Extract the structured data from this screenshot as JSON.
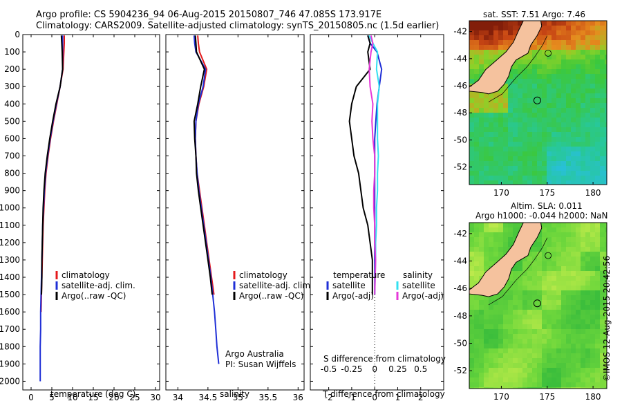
{
  "header": {
    "title1": "Argo profile: CS 5904236_94 06-Aug-2015 20150807_746 47.085S 173.917E",
    "title2": "Climatology: CARS2009. Satellite-adjusted climatology: synTS_20150805.nc (1.5d earlier)"
  },
  "colors": {
    "climatology": "#e41a1c",
    "satellite": "#1f2fd6",
    "argo": "#000000",
    "salinity_satellite": "#33e0f0",
    "salinity_argo": "#e639d8"
  },
  "chart_data": [
    {
      "type": "line",
      "xlabel": "temperature (deg C)",
      "ylabel": "",
      "xlim": [
        -2,
        31
      ],
      "ylim": [
        0,
        2050
      ],
      "y_reversed": true,
      "xticks": [
        0,
        5,
        10,
        15,
        20,
        25,
        30
      ],
      "yticks": [
        0,
        100,
        200,
        300,
        400,
        500,
        600,
        700,
        800,
        900,
        1000,
        1100,
        1200,
        1300,
        1400,
        1500,
        1600,
        1700,
        1800,
        1900,
        2000
      ],
      "legend": [
        "climatology",
        "satellite-adj. clim.",
        "Argo(..raw -QC)"
      ],
      "series": [
        {
          "name": "climatology",
          "x": [
            8.0,
            8.0,
            7.9,
            7.7,
            7.0,
            6.2,
            5.4,
            4.7,
            4.1,
            3.6,
            3.3,
            3.1,
            2.9,
            2.8,
            2.7,
            2.6,
            2.5,
            2.4
          ],
          "y": [
            5,
            50,
            100,
            200,
            300,
            400,
            500,
            600,
            700,
            800,
            900,
            1000,
            1100,
            1200,
            1300,
            1400,
            1500,
            1600
          ]
        },
        {
          "name": "satellite-adj. clim.",
          "x": [
            7.6,
            7.6,
            7.6,
            7.6,
            7.0,
            6.1,
            5.3,
            4.6,
            4.0,
            3.5,
            3.2,
            3.0,
            2.8,
            2.7,
            2.6,
            2.5,
            2.4,
            2.3,
            2.3,
            2.2,
            2.2,
            2.2
          ],
          "y": [
            5,
            50,
            100,
            200,
            300,
            400,
            500,
            600,
            700,
            800,
            900,
            1000,
            1100,
            1200,
            1300,
            1400,
            1500,
            1600,
            1700,
            1800,
            1900,
            2000
          ]
        },
        {
          "name": "Argo(..raw -QC)",
          "x": [
            7.3,
            7.4,
            7.5,
            7.6,
            7.0,
            6.0,
            5.2,
            4.5,
            3.9,
            3.4,
            3.1,
            2.9,
            2.8,
            2.7,
            2.6,
            2.6,
            2.5
          ],
          "y": [
            5,
            50,
            100,
            200,
            300,
            400,
            500,
            600,
            700,
            800,
            900,
            1000,
            1100,
            1200,
            1300,
            1400,
            1500
          ]
        }
      ]
    },
    {
      "type": "line",
      "xlabel": "salinity",
      "ylabel": "",
      "xlim": [
        33.8,
        36.1
      ],
      "ylim": [
        0,
        2050
      ],
      "y_reversed": true,
      "xticks": [
        34,
        34.5,
        35,
        35.5,
        36
      ],
      "legend": [
        "climatology",
        "satellite-adj. clim.",
        "Argo(..raw -QC)"
      ],
      "annotation1": "Argo Australia",
      "annotation2": "PI: Susan Wijffels",
      "series": [
        {
          "name": "climatology",
          "x": [
            34.33,
            34.34,
            34.36,
            34.48,
            34.43,
            34.35,
            34.3,
            34.29,
            34.3,
            34.32,
            34.36,
            34.4,
            34.44,
            34.48,
            34.52,
            34.56,
            34.6
          ],
          "y": [
            5,
            50,
            100,
            200,
            300,
            400,
            500,
            600,
            700,
            800,
            900,
            1000,
            1100,
            1200,
            1300,
            1400,
            1500
          ]
        },
        {
          "name": "satellite-adj. clim.",
          "x": [
            34.27,
            34.28,
            34.3,
            34.46,
            34.42,
            34.34,
            34.3,
            34.29,
            34.3,
            34.32,
            34.35,
            34.39,
            34.43,
            34.47,
            34.51,
            34.55,
            34.58,
            34.61,
            34.63,
            34.65,
            34.68
          ],
          "y": [
            5,
            50,
            100,
            200,
            300,
            400,
            500,
            600,
            700,
            800,
            900,
            1000,
            1100,
            1200,
            1300,
            1400,
            1500,
            1600,
            1700,
            1800,
            1900
          ]
        },
        {
          "name": "Argo(..raw -QC)",
          "x": [
            34.29,
            34.3,
            34.31,
            34.44,
            34.38,
            34.33,
            34.27,
            34.28,
            34.3,
            34.31,
            34.34,
            34.38,
            34.42,
            34.46,
            34.5,
            34.54,
            34.57
          ],
          "y": [
            5,
            50,
            100,
            200,
            300,
            400,
            500,
            600,
            700,
            800,
            900,
            1000,
            1100,
            1200,
            1300,
            1400,
            1500
          ]
        }
      ]
    },
    {
      "type": "line",
      "xlabel": "T difference from climatology",
      "xlabel_top": "S difference from climatology",
      "ylabel": "",
      "xlim": [
        -2.8,
        3.0
      ],
      "ylim": [
        0,
        2050
      ],
      "y_reversed": true,
      "xticks": [
        -2,
        -1,
        0,
        1,
        2
      ],
      "xticks_top": [
        "-0.5",
        "-0.25",
        "0",
        "0.25",
        "0.5"
      ],
      "legend_title_t": "temperature",
      "legend_title_s": "salinity",
      "legend_t": [
        "satellite",
        "Argo(-adj)"
      ],
      "legend_s": [
        "satellite",
        "Argo(-adj)"
      ],
      "series": [
        {
          "name": "temperature satellite",
          "x": [
            -0.3,
            -0.2,
            0.1,
            0.3,
            0.2,
            0.1,
            0.05,
            0.0,
            0.0,
            0.0,
            0.0,
            0.0,
            0.0,
            0.0,
            0.0,
            0.0
          ],
          "y": [
            5,
            50,
            100,
            200,
            300,
            400,
            500,
            600,
            700,
            800,
            900,
            1000,
            1100,
            1200,
            1300,
            1500
          ]
        },
        {
          "name": "temperature Argo(-adj)",
          "x": [
            -0.3,
            -0.2,
            -0.3,
            -0.2,
            -0.8,
            -1.0,
            -1.1,
            -1.0,
            -0.9,
            -0.7,
            -0.6,
            -0.5,
            -0.3,
            -0.2,
            -0.1,
            -0.1
          ],
          "y": [
            5,
            50,
            100,
            200,
            300,
            400,
            500,
            600,
            700,
            800,
            900,
            1000,
            1100,
            1200,
            1300,
            1500
          ]
        },
        {
          "name": "salinity satellite",
          "x": [
            -0.06,
            -0.02,
            0.03,
            0.02,
            0.05,
            0.03,
            0.03,
            0.03,
            0.04,
            0.03,
            0.03,
            0.02,
            0.02,
            0.01,
            0.01,
            0.0
          ],
          "y": [
            5,
            50,
            100,
            200,
            300,
            400,
            500,
            600,
            700,
            800,
            900,
            1000,
            1100,
            1200,
            1300,
            1500
          ]
        },
        {
          "name": "salinity Argo(-adj)",
          "x": [
            -0.04,
            -0.02,
            -0.04,
            -0.06,
            -0.05,
            -0.02,
            -0.03,
            -0.02,
            0.0,
            0.0,
            -0.01,
            -0.01,
            0.0,
            0.0,
            0.01,
            0.0
          ],
          "y": [
            5,
            50,
            100,
            200,
            300,
            400,
            500,
            600,
            700,
            800,
            900,
            1000,
            1100,
            1200,
            1300,
            1500
          ]
        }
      ]
    },
    {
      "type": "heatmap",
      "title": "sat. SST: 7.51 Argo: 7.46",
      "xticks": [
        170,
        175,
        180
      ],
      "yticks": [
        -42,
        -44,
        -46,
        -48,
        -50,
        -52
      ],
      "xlim": [
        166.5,
        181.5
      ],
      "ylim": [
        -53.3,
        -41.2
      ]
    },
    {
      "type": "heatmap",
      "title1": "Altim. SLA: 0.011",
      "title2": "Argo h1000: -0.044 h2000: NaN",
      "xticks": [
        170,
        175,
        180
      ],
      "yticks": [
        -42,
        -44,
        -46,
        -48,
        -50,
        -52
      ],
      "xlim": [
        166.5,
        181.5
      ],
      "ylim": [
        -53.3,
        -41.2
      ]
    }
  ],
  "footer": {
    "watermark": "©IMOS 12-Aug-2015 20:42:56"
  }
}
